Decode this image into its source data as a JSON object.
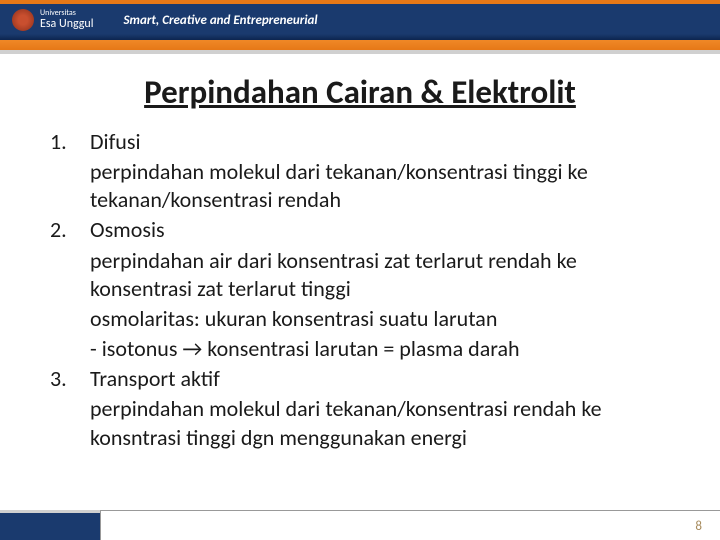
{
  "header": {
    "logo_small": "Universitas",
    "logo_main": "Esa Unggul",
    "tagline": "Smart, Creative and Entrepreneurial"
  },
  "title": "Perpindahan Cairan & Elektrolit",
  "items": [
    {
      "num": "1.",
      "heading": "Difusi",
      "desc": "perpindahan molekul dari tekanan/konsentrasi tinggi ke tekanan/konsentrasi rendah"
    },
    {
      "num": "2.",
      "heading": "Osmosis",
      "desc": "perpindahan air dari konsentrasi zat terlarut rendah ke konsentrasi zat terlarut tinggi",
      "extra1": "osmolaritas: ukuran konsentrasi suatu larutan",
      "extra2": "- isotonus → konsentrasi larutan = plasma darah"
    },
    {
      "num": "3.",
      "heading": "Transport aktif",
      "desc": "perpindahan molekul dari tekanan/konsentrasi rendah ke konsntrasi tinggi dgn menggunakan energi"
    }
  ],
  "page_number": "8"
}
